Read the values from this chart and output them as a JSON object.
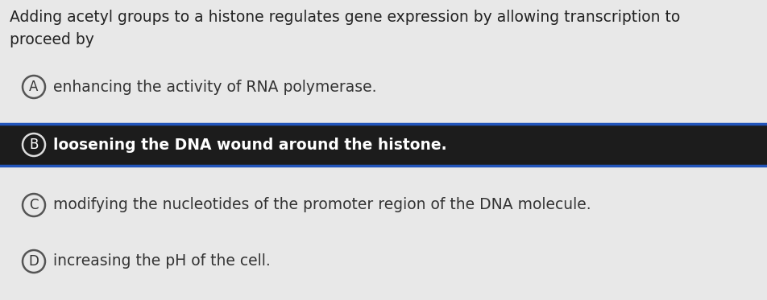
{
  "question_line1": "Adding acetyl groups to a histone regulates gene expression by allowing transcription to",
  "question_line2": "proceed by",
  "options": [
    {
      "label": "A",
      "text": "enhancing the activity of RNA polymerase.",
      "correct": false
    },
    {
      "label": "B",
      "text": "loosening the DNA wound around the histone.",
      "correct": true
    },
    {
      "label": "C",
      "text": "modifying the nucleotides of the promoter region of the DNA molecule.",
      "correct": false
    },
    {
      "label": "D",
      "text": "increasing the pH of the cell.",
      "correct": false
    }
  ],
  "bg_color": "#e8e8e8",
  "highlight_bg": "#1c1c1c",
  "highlight_border_top": "#2255bb",
  "highlight_border_bottom": "#2255bb",
  "highlight_text_color": "#ffffff",
  "normal_text_color": "#333333",
  "question_text_color": "#222222",
  "circle_edge_color": "#555555",
  "highlight_circle_edge": "#dddddd",
  "question_fontsize": 13.5,
  "option_fontsize": 13.5,
  "fig_width": 9.52,
  "fig_height": 3.73,
  "dpi": 100
}
